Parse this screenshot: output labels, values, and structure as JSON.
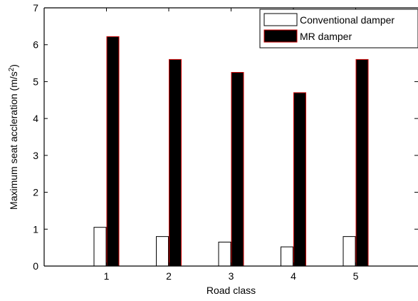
{
  "chart_data": {
    "type": "bar",
    "title": "",
    "xlabel": "Road class",
    "ylabel": "Maximum  seat accleration (m/s",
    "ylabel_superscript": "2",
    "ylabel_suffix": ")",
    "categories": [
      "1",
      "2",
      "3",
      "4",
      "5"
    ],
    "x_ticks": [
      "1",
      "2",
      "3",
      "4",
      "5"
    ],
    "y_ticks": [
      "0",
      "1",
      "2",
      "3",
      "4",
      "5",
      "6",
      "7"
    ],
    "ylim": [
      0,
      7
    ],
    "grid": false,
    "legend_position": "top-right",
    "series": [
      {
        "name": "Conventional damper",
        "values": [
          1.05,
          0.8,
          0.65,
          0.52,
          0.8
        ],
        "fill": "#ffffff",
        "edge": "#000000"
      },
      {
        "name": "MR damper",
        "values": [
          6.22,
          5.6,
          5.25,
          4.7,
          5.6
        ],
        "fill": "#000000",
        "edge": "#cc0000"
      }
    ]
  }
}
